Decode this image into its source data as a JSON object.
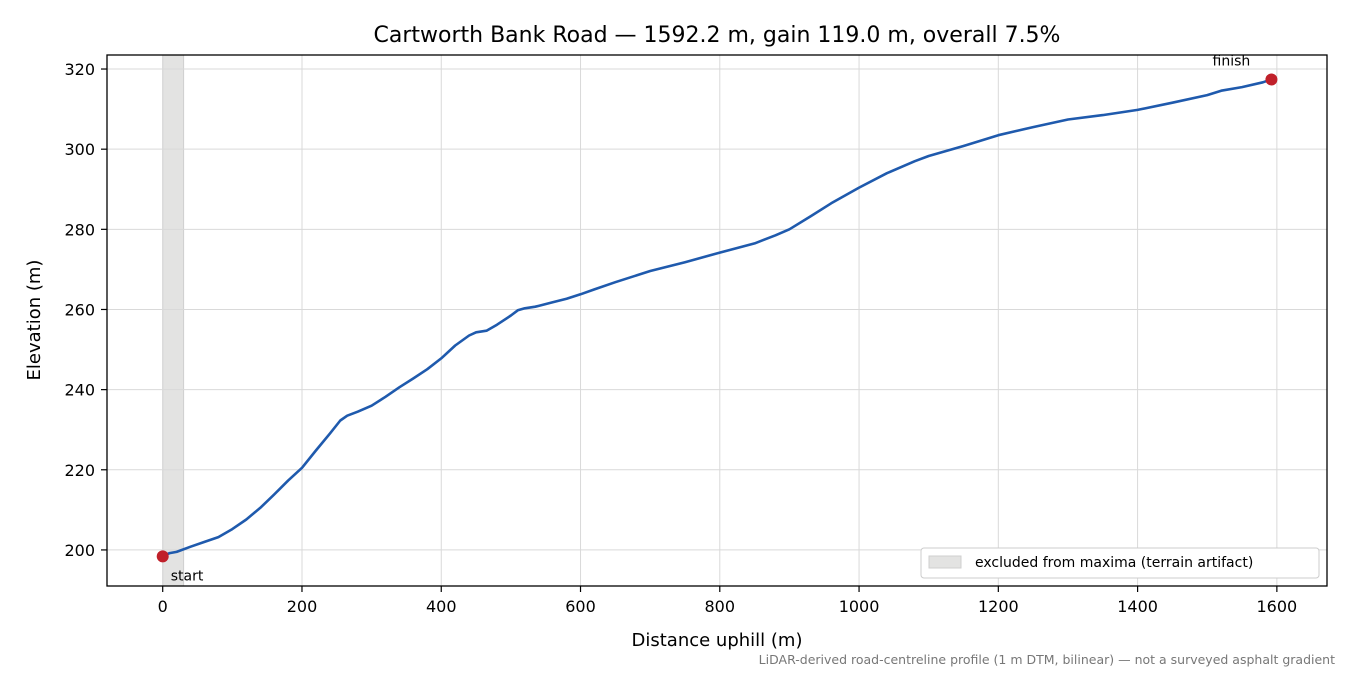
{
  "chart_data": {
    "type": "line",
    "title": "Cartworth Bank Road — 1592.2 m, gain 119.0 m, overall 7.5%",
    "xlabel": "Distance uphill (m)",
    "ylabel": "Elevation (m)",
    "xlim": [
      -80,
      1672
    ],
    "ylim": [
      191,
      323.5
    ],
    "x_ticks": [
      0,
      200,
      400,
      600,
      800,
      1000,
      1200,
      1400,
      1600
    ],
    "y_ticks": [
      200,
      220,
      240,
      260,
      280,
      300,
      320
    ],
    "grid": true,
    "legend_position": "bottom-right",
    "colors": {
      "line": "#1f5aad",
      "markers": "#c0202a",
      "excluded_band": "#e3e3e2"
    },
    "series": [
      {
        "points": [
          [
            0,
            198.4
          ],
          [
            10,
            199.2
          ],
          [
            20,
            199.5
          ],
          [
            40,
            200.8
          ],
          [
            60,
            202.0
          ],
          [
            80,
            203.2
          ],
          [
            100,
            205.2
          ],
          [
            120,
            207.6
          ],
          [
            140,
            210.5
          ],
          [
            160,
            213.8
          ],
          [
            180,
            217.3
          ],
          [
            200,
            220.5
          ],
          [
            220,
            224.8
          ],
          [
            240,
            229.0
          ],
          [
            255,
            232.3
          ],
          [
            265,
            233.5
          ],
          [
            280,
            234.5
          ],
          [
            300,
            236.0
          ],
          [
            320,
            238.2
          ],
          [
            340,
            240.6
          ],
          [
            360,
            242.8
          ],
          [
            380,
            245.1
          ],
          [
            400,
            247.8
          ],
          [
            420,
            251.0
          ],
          [
            440,
            253.5
          ],
          [
            450,
            254.3
          ],
          [
            465,
            254.7
          ],
          [
            480,
            256.2
          ],
          [
            500,
            258.5
          ],
          [
            510,
            259.8
          ],
          [
            520,
            260.3
          ],
          [
            535,
            260.7
          ],
          [
            540,
            260.9
          ],
          [
            560,
            261.8
          ],
          [
            580,
            262.7
          ],
          [
            600,
            263.8
          ],
          [
            620,
            265.0
          ],
          [
            650,
            266.8
          ],
          [
            700,
            269.6
          ],
          [
            750,
            271.8
          ],
          [
            800,
            274.2
          ],
          [
            850,
            276.5
          ],
          [
            880,
            278.5
          ],
          [
            900,
            280.0
          ],
          [
            930,
            283.2
          ],
          [
            960,
            286.5
          ],
          [
            1000,
            290.4
          ],
          [
            1040,
            294.0
          ],
          [
            1080,
            297.0
          ],
          [
            1100,
            298.3
          ],
          [
            1150,
            300.8
          ],
          [
            1200,
            303.5
          ],
          [
            1250,
            305.5
          ],
          [
            1300,
            307.4
          ],
          [
            1350,
            308.5
          ],
          [
            1400,
            309.8
          ],
          [
            1450,
            311.6
          ],
          [
            1500,
            313.5
          ],
          [
            1520,
            314.6
          ],
          [
            1550,
            315.5
          ],
          [
            1580,
            316.7
          ],
          [
            1592.2,
            317.4
          ]
        ]
      }
    ],
    "markers": [
      {
        "label": "start",
        "x": 0,
        "y": 198.4
      },
      {
        "label": "finish",
        "x": 1592.2,
        "y": 317.4
      }
    ],
    "excluded_band": {
      "x_start": 0,
      "x_end": 30
    },
    "legend": {
      "excluded_label": "excluded from maxima (terrain artifact)"
    },
    "footnote": "LiDAR-derived road-centreline profile (1 m DTM, bilinear) — not a surveyed asphalt gradient"
  }
}
